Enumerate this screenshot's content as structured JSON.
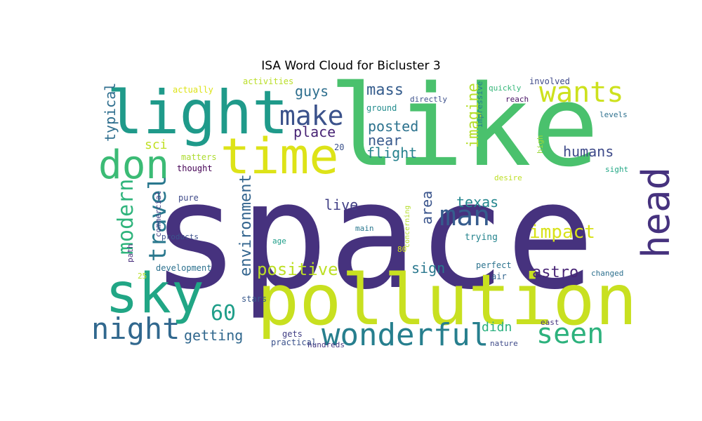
{
  "chart_data": {
    "type": "wordcloud",
    "title": "ISA Word Cloud for Bicluster 3",
    "words": [
      {
        "text": "space",
        "color": "#46327e"
      },
      {
        "text": "like",
        "color": "#4ac16d"
      },
      {
        "text": "pollution",
        "color": "#c8e020"
      },
      {
        "text": "light",
        "color": "#1f9a8a"
      },
      {
        "text": "sky",
        "color": "#21a685"
      },
      {
        "text": "time",
        "color": "#dde318"
      },
      {
        "text": "don",
        "color": "#3bbb75"
      },
      {
        "text": "head",
        "color": "#46327e"
      },
      {
        "text": "wonderful",
        "color": "#277f8e"
      },
      {
        "text": "night",
        "color": "#31688e"
      },
      {
        "text": "wants",
        "color": "#cde11d"
      },
      {
        "text": "seen",
        "color": "#2db27d"
      },
      {
        "text": "man",
        "color": "#365c8d"
      },
      {
        "text": "make",
        "color": "#3b528b"
      },
      {
        "text": "travel",
        "color": "#2a788e"
      },
      {
        "text": "modern",
        "color": "#2fb47c"
      },
      {
        "text": "60",
        "color": "#1f9e89"
      },
      {
        "text": "impact",
        "color": "#d8e219"
      },
      {
        "text": "positive",
        "color": "#bddf26"
      },
      {
        "text": "environment",
        "color": "#32648e"
      },
      {
        "text": "mass",
        "color": "#365d8d"
      },
      {
        "text": "imagine",
        "color": "#b5de2b"
      },
      {
        "text": "astro",
        "color": "#482576"
      },
      {
        "text": "posted",
        "color": "#2c728e"
      },
      {
        "text": "near",
        "color": "#38598c"
      },
      {
        "text": "flight",
        "color": "#26828e"
      },
      {
        "text": "humans",
        "color": "#3e4a89"
      },
      {
        "text": "guys",
        "color": "#2e6f8e"
      },
      {
        "text": "typical",
        "color": "#2e6e8e"
      },
      {
        "text": "place",
        "color": "#482475"
      },
      {
        "text": "texas",
        "color": "#24868e"
      },
      {
        "text": "live",
        "color": "#424086"
      },
      {
        "text": "area",
        "color": "#3a548c"
      },
      {
        "text": "getting",
        "color": "#31688e"
      },
      {
        "text": "sign",
        "color": "#2a788e"
      },
      {
        "text": "didn",
        "color": "#2ab07f"
      },
      {
        "text": "sci",
        "color": "#c0df25"
      },
      {
        "text": "actually",
        "color": "#dde318"
      },
      {
        "text": "activities",
        "color": "#bade28"
      },
      {
        "text": "involved",
        "color": "#3e4989"
      },
      {
        "text": "quickly",
        "color": "#35b779"
      },
      {
        "text": "directly",
        "color": "#3c508b"
      },
      {
        "text": "reach",
        "color": "#471164"
      },
      {
        "text": "impressive",
        "color": "#277f8e"
      },
      {
        "text": "ground",
        "color": "#228c8d"
      },
      {
        "text": "levels",
        "color": "#2d708e"
      },
      {
        "text": "matters",
        "color": "#addc30"
      },
      {
        "text": "thought",
        "color": "#440154"
      },
      {
        "text": "20",
        "color": "#3b528b"
      },
      {
        "text": "high",
        "color": "#9bd93c"
      },
      {
        "text": "sight",
        "color": "#22a785"
      },
      {
        "text": "desire",
        "color": "#bddf26"
      },
      {
        "text": "commercial",
        "color": "#424086"
      },
      {
        "text": "pure",
        "color": "#3e4a89"
      },
      {
        "text": "path",
        "color": "#472d7b"
      },
      {
        "text": "products",
        "color": "#3b528b"
      },
      {
        "text": "main",
        "color": "#2a788e"
      },
      {
        "text": "age",
        "color": "#1f9e89"
      },
      {
        "text": "concerning",
        "color": "#b5de2b"
      },
      {
        "text": "80",
        "color": "#d0e11c"
      },
      {
        "text": "trying",
        "color": "#25848e"
      },
      {
        "text": "development",
        "color": "#2c718e"
      },
      {
        "text": "perfect",
        "color": "#2c738e"
      },
      {
        "text": "changed",
        "color": "#2d708e"
      },
      {
        "text": "25",
        "color": "#b8de29"
      },
      {
        "text": "air",
        "color": "#32658e"
      },
      {
        "text": "stars",
        "color": "#38598c"
      },
      {
        "text": "hundreds",
        "color": "#453781"
      },
      {
        "text": "gets",
        "color": "#423f85"
      },
      {
        "text": "east",
        "color": "#463480"
      },
      {
        "text": "practical",
        "color": "#3b528b"
      },
      {
        "text": "nature",
        "color": "#3e4a89"
      }
    ]
  }
}
